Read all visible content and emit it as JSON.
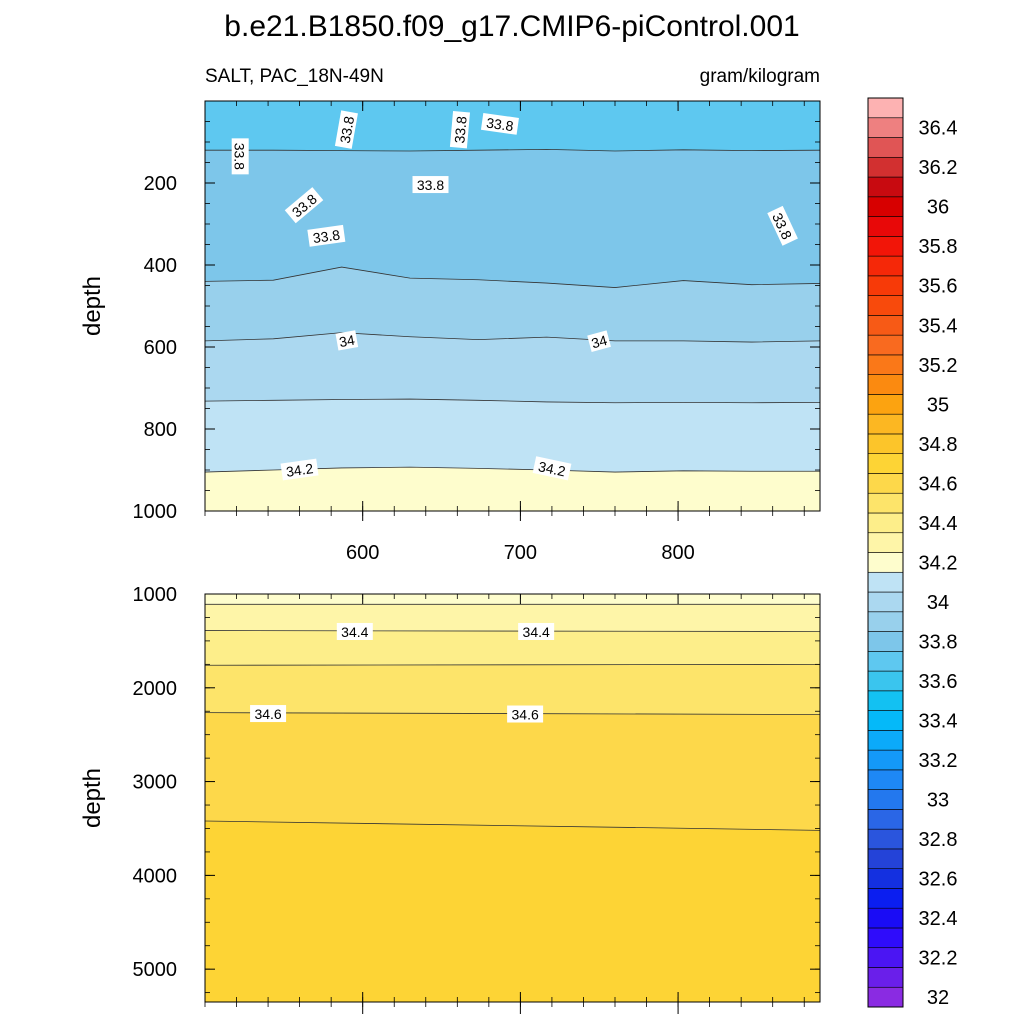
{
  "title": "b.e21.B1850.f09_g17.CMIP6-piControl.001",
  "left_string": "SALT, PAC_18N-49N",
  "right_string": "gram/kilogram",
  "chart_data": [
    {
      "type": "contour",
      "panel": "upper",
      "ylabel": "depth",
      "xlim": [
        500,
        890
      ],
      "ylim": [
        1000,
        0
      ],
      "xticks": [
        600,
        700,
        800
      ],
      "yticks": [
        200,
        400,
        600,
        800,
        1000
      ],
      "contour_lines": [
        {
          "level": 33.8,
          "y": [
            120,
            120,
            121,
            122,
            120,
            118,
            122,
            119,
            121,
            120
          ]
        },
        {
          "level": 33.9,
          "y": [
            440,
            437,
            405,
            432,
            436,
            444,
            455,
            438,
            448,
            445
          ]
        },
        {
          "level": 34.0,
          "y": [
            585,
            580,
            565,
            575,
            582,
            576,
            585,
            585,
            588,
            585
          ]
        },
        {
          "level": 34.1,
          "y": [
            732,
            730,
            728,
            727,
            730,
            734,
            736,
            735,
            736,
            735
          ]
        },
        {
          "level": 34.2,
          "y": [
            905,
            900,
            895,
            893,
            896,
            900,
            905,
            902,
            903,
            903
          ]
        }
      ],
      "line_labels": [
        {
          "text": "33.8",
          "x": 522,
          "y": 135,
          "angle": 90
        },
        {
          "text": "33.8",
          "x": 590,
          "y": 70,
          "angle": -80
        },
        {
          "text": "33.8",
          "x": 563,
          "y": 255,
          "angle": -40
        },
        {
          "text": "33.8",
          "x": 662,
          "y": 70,
          "angle": -85
        },
        {
          "text": "33.8",
          "x": 687,
          "y": 57,
          "angle": 8
        },
        {
          "text": "33.8",
          "x": 643,
          "y": 205,
          "angle": 0
        },
        {
          "text": "33.8",
          "x": 577,
          "y": 330,
          "angle": -8
        },
        {
          "text": "33.8",
          "x": 866,
          "y": 305,
          "angle": 65
        },
        {
          "text": "34",
          "x": 590,
          "y": 585,
          "angle": -10
        },
        {
          "text": "34",
          "x": 750,
          "y": 587,
          "angle": -15
        },
        {
          "text": "34.2",
          "x": 560,
          "y": 900,
          "angle": -8
        },
        {
          "text": "34.2",
          "x": 720,
          "y": 897,
          "angle": 12
        }
      ]
    },
    {
      "type": "contour",
      "panel": "lower",
      "ylabel": "depth",
      "xlim": [
        500,
        890
      ],
      "ylim": [
        5350,
        1000
      ],
      "yticks": [
        1000,
        2000,
        3000,
        4000,
        5000
      ],
      "contour_lines": [
        {
          "level": 34.3,
          "y": [
            1110,
            1110
          ]
        },
        {
          "level": 34.4,
          "y": [
            1390,
            1400
          ]
        },
        {
          "level": 34.5,
          "y": [
            1760,
            1750
          ]
        },
        {
          "level": 34.6,
          "y": [
            2265,
            2285
          ]
        },
        {
          "level": 34.7,
          "y": [
            3420,
            3520
          ]
        }
      ],
      "line_labels": [
        {
          "text": "34.4",
          "x": 595,
          "y": 1405,
          "angle": 0
        },
        {
          "text": "34.4",
          "x": 710,
          "y": 1405,
          "angle": 0
        },
        {
          "text": "34.6",
          "x": 540,
          "y": 2280,
          "angle": 0
        },
        {
          "text": "34.6",
          "x": 703,
          "y": 2285,
          "angle": 0
        }
      ]
    }
  ],
  "colorbar": {
    "levels": [
      32,
      32.1,
      32.2,
      32.3,
      32.4,
      32.5,
      32.6,
      32.7,
      32.8,
      32.9,
      33,
      33.1,
      33.2,
      33.3,
      33.4,
      33.5,
      33.6,
      33.7,
      33.8,
      33.9,
      34,
      34.1,
      34.2,
      34.3,
      34.4,
      34.5,
      34.6,
      34.7,
      34.8,
      34.9,
      35,
      35.1,
      35.2,
      35.3,
      35.4,
      35.5,
      35.6,
      35.7,
      35.8,
      35.9,
      36,
      36.1,
      36.2,
      36.3,
      36.4,
      36.5
    ],
    "colors": [
      "#8a2be2",
      "#6a1fea",
      "#4b15f3",
      "#2f0cfb",
      "#1a0cf5",
      "#0b1ef0",
      "#1430e0",
      "#2443d8",
      "#2a55dd",
      "#2a66e6",
      "#2378ee",
      "#1e88f5",
      "#1499f8",
      "#0caaf9",
      "#05b9f9",
      "#13c1f2",
      "#3ac5ee",
      "#5ec8f0",
      "#7dc6ea",
      "#98d0ec",
      "#abd8f0",
      "#bfe3f5",
      "#fefdcd",
      "#fef5a8",
      "#fdee8a",
      "#fde46a",
      "#fdd84a",
      "#fdd435",
      "#fcc52a",
      "#fcb722",
      "#fca310",
      "#fb8a10",
      "#fa7818",
      "#f96a1f",
      "#f75a16",
      "#f84a0c",
      "#f73a08",
      "#f52808",
      "#f21508",
      "#e80808",
      "#d70000",
      "#c80a10",
      "#d23030",
      "#e05555",
      "#ee8080",
      "#fdb2b2"
    ],
    "label_values": [
      "32",
      "32.2",
      "32.4",
      "32.6",
      "32.8",
      "33",
      "33.2",
      "33.4",
      "33.6",
      "33.8",
      "34",
      "34.2",
      "34.4",
      "34.6",
      "34.8",
      "35",
      "35.2",
      "35.4",
      "35.6",
      "35.8",
      "36",
      "36.2",
      "36.4"
    ]
  }
}
